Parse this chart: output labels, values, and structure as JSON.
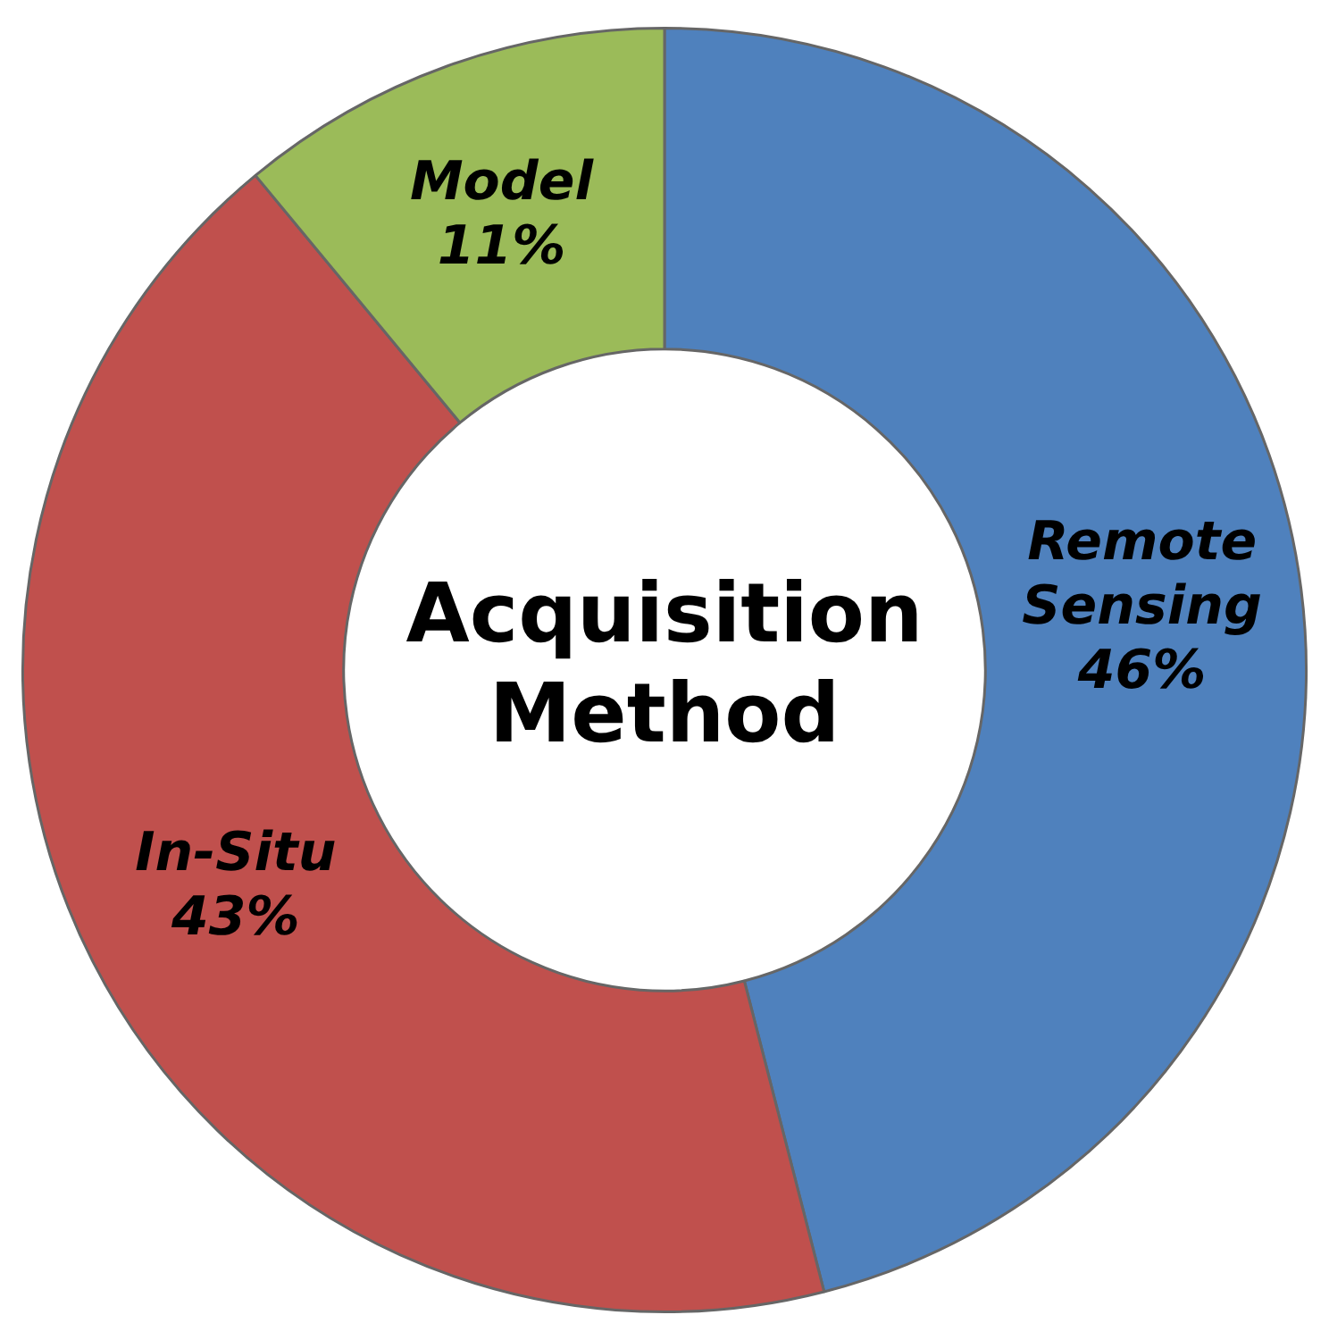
{
  "chart_data": {
    "type": "donut",
    "title": "Acquisition Method",
    "categories": [
      "Remote Sensing",
      "In-Situ",
      "Model"
    ],
    "values": [
      46,
      43,
      11
    ],
    "value_labels": [
      "46%",
      "43%",
      "11%"
    ],
    "colors": [
      "#4f81bd",
      "#c0504d",
      "#9bbb59"
    ],
    "legend": false
  }
}
